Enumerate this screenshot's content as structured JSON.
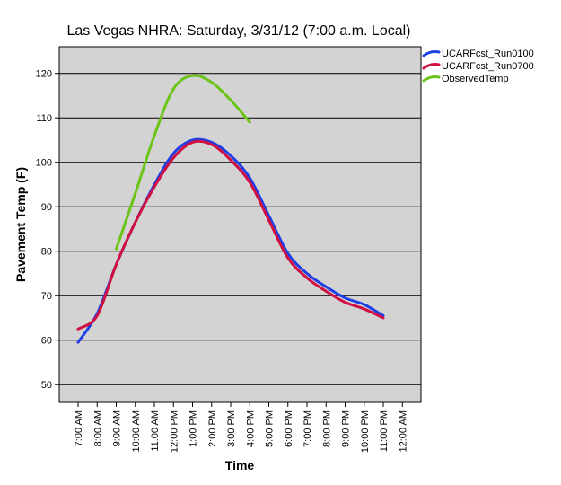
{
  "chart_data": {
    "type": "line",
    "title": "Las Vegas NHRA: Saturday, 3/31/12 (7:00 a.m. Local)",
    "xlabel": "Time",
    "ylabel": "Pavement Temp (F)",
    "ylim": [
      46,
      126
    ],
    "yticks": [
      50,
      60,
      70,
      80,
      90,
      100,
      110,
      120
    ],
    "grid": true,
    "legend_position": "top-right",
    "categories": [
      "7:00 AM",
      "8:00 AM",
      "9:00 AM",
      "10:00 AM",
      "11:00 AM",
      "12:00 PM",
      "1:00 PM",
      "2:00 PM",
      "3:00 PM",
      "4:00 PM",
      "5:00 PM",
      "6:00 PM",
      "7:00 PM",
      "8:00 PM",
      "9:00 PM",
      "10:00 PM",
      "11:00 PM",
      "12:00 AM"
    ],
    "series": [
      {
        "name": "UCARFcst_Run0100",
        "color": "#1f3fe6",
        "values": [
          59.5,
          66,
          77,
          86.5,
          95,
          102,
          105,
          104.5,
          101.5,
          96.5,
          88,
          79.5,
          75,
          72,
          69.5,
          68,
          65.5,
          null
        ]
      },
      {
        "name": "UCARFcst_Run0700",
        "color": "#d01040",
        "values": [
          62.5,
          65.5,
          77,
          86.5,
          94.5,
          101,
          104.5,
          104,
          100.5,
          95.5,
          87,
          78.5,
          74,
          71,
          68.5,
          67,
          65,
          null
        ]
      },
      {
        "name": "ObservedTemp",
        "color": "#6cc417",
        "values": [
          null,
          null,
          80.5,
          93,
          106,
          116.5,
          119.5,
          118,
          114,
          109,
          null,
          null,
          null,
          null,
          null,
          null,
          null,
          null
        ]
      }
    ]
  }
}
